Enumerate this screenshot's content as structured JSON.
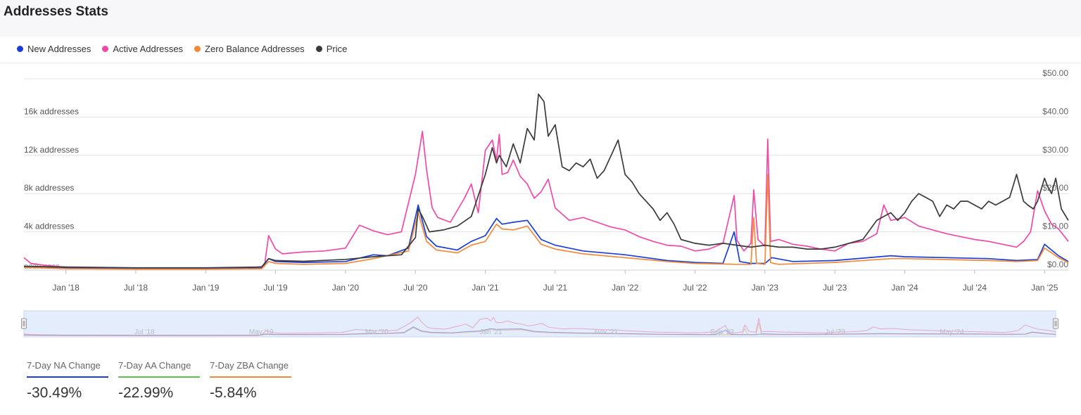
{
  "title": "Addresses Stats",
  "legend": [
    {
      "name": "New Addresses",
      "color": "#1a3fd6"
    },
    {
      "name": "Active Addresses",
      "color": "#ee4aa8"
    },
    {
      "name": "Zero Balance Addresses",
      "color": "#f28a3b"
    },
    {
      "name": "Price",
      "color": "#3a3a3a"
    }
  ],
  "stats": [
    {
      "label": "7-Day NA Change",
      "value": "-30.49%",
      "color": "#1a3fd6"
    },
    {
      "label": "7-Day AA Change",
      "value": "-22.99%",
      "color": "#5cc04e"
    },
    {
      "label": "7-Day ZBA Change",
      "value": "-5.84%",
      "color": "#f28a3b"
    }
  ],
  "chart_data": {
    "type": "line",
    "title": "",
    "left_axis": {
      "ticks": [
        "4k addresses",
        "8k addresses",
        "12k addresses",
        "16k addresses"
      ],
      "tick_values": [
        4000,
        8000,
        12000,
        16000
      ],
      "bottom_label": "addresses",
      "ylim": [
        0,
        20000
      ]
    },
    "right_axis": {
      "ticks": [
        "$0.00",
        "$10.00",
        "$20.00",
        "$30.00",
        "$40.00",
        "$50.00"
      ],
      "tick_values": [
        0,
        10,
        20,
        30,
        40,
        50
      ],
      "ylim": [
        0,
        50
      ]
    },
    "x_ticks": [
      "Jan '18",
      "Jul '18",
      "Jan '19",
      "Jul '19",
      "Jan '20",
      "Jul '20",
      "Jan '21",
      "Jul '21",
      "Jan '22",
      "Jul '22",
      "Jan '23",
      "Jul '23",
      "Jan '24",
      "Jul '24",
      "Jan '25"
    ],
    "x_tick_values": [
      2018.0,
      2018.5,
      2019.0,
      2019.5,
      2020.0,
      2020.5,
      2021.0,
      2021.5,
      2022.0,
      2022.5,
      2023.0,
      2023.5,
      2024.0,
      2024.5,
      2025.0
    ],
    "xlim": [
      2017.7,
      2025.17
    ],
    "navigator_labels": [
      "Jul '18",
      "May '19",
      "Mar '20",
      "Jan '21",
      "Nov '21",
      "Sep '22",
      "Jul '23",
      "May '24"
    ],
    "navigator_label_values": [
      2018.5,
      2019.33,
      2020.17,
      2021.0,
      2021.83,
      2022.67,
      2023.5,
      2024.33
    ],
    "series": [
      {
        "name": "Active Addresses",
        "axis": "left",
        "color": "#ee4aa8",
        "x": [
          2017.7,
          2017.75,
          2017.85,
          2018.0,
          2018.2,
          2018.5,
          2018.8,
          2019.0,
          2019.3,
          2019.42,
          2019.45,
          2019.5,
          2019.55,
          2019.7,
          2019.85,
          2020.0,
          2020.1,
          2020.2,
          2020.3,
          2020.4,
          2020.45,
          2020.5,
          2020.55,
          2020.58,
          2020.62,
          2020.66,
          2020.75,
          2020.85,
          2020.9,
          2020.95,
          2021.0,
          2021.05,
          2021.08,
          2021.1,
          2021.12,
          2021.16,
          2021.2,
          2021.25,
          2021.3,
          2021.35,
          2021.4,
          2021.45,
          2021.5,
          2021.6,
          2021.7,
          2021.8,
          2021.9,
          2022.0,
          2022.1,
          2022.2,
          2022.3,
          2022.4,
          2022.5,
          2022.6,
          2022.7,
          2022.78,
          2022.8,
          2022.85,
          2022.9,
          2022.92,
          2022.95,
          2023.0,
          2023.02,
          2023.04,
          2023.1,
          2023.2,
          2023.3,
          2023.4,
          2023.5,
          2023.6,
          2023.7,
          2023.8,
          2023.85,
          2023.9,
          2024.0,
          2024.1,
          2024.2,
          2024.3,
          2024.4,
          2024.5,
          2024.6,
          2024.7,
          2024.8,
          2024.85,
          2024.9,
          2024.95,
          2025.0,
          2025.05,
          2025.1,
          2025.17
        ],
        "y": [
          1300,
          700,
          500,
          300,
          250,
          200,
          150,
          150,
          200,
          400,
          3600,
          2200,
          1700,
          1900,
          2000,
          2300,
          4700,
          4100,
          3700,
          4000,
          7000,
          10000,
          14500,
          10500,
          6500,
          5500,
          5000,
          7500,
          9000,
          6000,
          12500,
          13600,
          11500,
          14200,
          10000,
          10200,
          11500,
          9800,
          9000,
          7500,
          8200,
          9500,
          6500,
          5200,
          5500,
          5000,
          4500,
          4200,
          3500,
          3000,
          2600,
          2500,
          2000,
          2200,
          2800,
          7800,
          3100,
          2000,
          2800,
          8400,
          3200,
          2500,
          13700,
          3000,
          3200,
          2700,
          2500,
          2200,
          2000,
          2800,
          3000,
          3800,
          6800,
          5200,
          5500,
          4600,
          4200,
          3800,
          3500,
          3200,
          3000,
          2700,
          2400,
          3000,
          4000,
          8300,
          6200,
          4800,
          4300,
          3000
        ]
      },
      {
        "name": "New Addresses",
        "axis": "left",
        "color": "#1a3fd6",
        "x": [
          2017.7,
          2017.8,
          2018.0,
          2018.5,
          2019.0,
          2019.4,
          2019.45,
          2019.5,
          2019.7,
          2020.0,
          2020.2,
          2020.3,
          2020.45,
          2020.52,
          2020.58,
          2020.65,
          2020.8,
          2020.9,
          2021.0,
          2021.08,
          2021.12,
          2021.2,
          2021.3,
          2021.4,
          2021.5,
          2021.7,
          2022.0,
          2022.3,
          2022.5,
          2022.7,
          2022.78,
          2022.82,
          2022.9,
          2023.0,
          2023.05,
          2023.2,
          2023.5,
          2023.9,
          2024.0,
          2024.3,
          2024.6,
          2024.8,
          2024.95,
          2025.0,
          2025.1,
          2025.17
        ],
        "y": [
          400,
          300,
          200,
          150,
          150,
          200,
          1200,
          900,
          800,
          900,
          1600,
          1500,
          2300,
          6800,
          3500,
          2500,
          2100,
          3000,
          3600,
          5400,
          4800,
          5000,
          5200,
          3200,
          2600,
          2000,
          1600,
          1000,
          800,
          700,
          4000,
          900,
          700,
          700,
          1300,
          900,
          1000,
          1500,
          1400,
          1300,
          1200,
          1000,
          1100,
          2700,
          1500,
          900
        ]
      },
      {
        "name": "Zero Balance Addresses",
        "axis": "left",
        "color": "#f28a3b",
        "x": [
          2017.7,
          2018.0,
          2018.5,
          2019.0,
          2019.4,
          2019.45,
          2019.5,
          2019.7,
          2020.0,
          2020.2,
          2020.45,
          2020.52,
          2020.58,
          2020.65,
          2020.8,
          2020.9,
          2021.0,
          2021.08,
          2021.12,
          2021.2,
          2021.3,
          2021.4,
          2021.5,
          2021.7,
          2022.0,
          2022.3,
          2022.5,
          2022.8,
          2022.9,
          2022.92,
          2022.94,
          2023.0,
          2023.02,
          2023.04,
          2023.06,
          2023.1,
          2023.5,
          2023.9,
          2024.0,
          2024.3,
          2024.6,
          2024.8,
          2024.95,
          2025.0,
          2025.1,
          2025.17
        ],
        "y": [
          300,
          150,
          100,
          100,
          150,
          900,
          700,
          600,
          700,
          1200,
          2000,
          6000,
          3000,
          2100,
          1800,
          2600,
          3000,
          4800,
          4300,
          4200,
          4600,
          2700,
          2200,
          1700,
          1300,
          900,
          700,
          600,
          600,
          5500,
          700,
          600,
          10000,
          800,
          700,
          600,
          800,
          1200,
          1200,
          1100,
          1000,
          900,
          1000,
          2300,
          1300,
          800
        ]
      },
      {
        "name": "Price",
        "axis": "right",
        "color": "#3a3a3a",
        "x": [
          2017.7,
          2018.0,
          2018.5,
          2019.0,
          2019.4,
          2019.45,
          2019.5,
          2019.7,
          2020.0,
          2020.2,
          2020.4,
          2020.5,
          2020.52,
          2020.55,
          2020.6,
          2020.7,
          2020.8,
          2020.9,
          2021.0,
          2021.05,
          2021.08,
          2021.1,
          2021.15,
          2021.2,
          2021.25,
          2021.3,
          2021.35,
          2021.38,
          2021.42,
          2021.45,
          2021.5,
          2021.55,
          2021.6,
          2021.65,
          2021.7,
          2021.75,
          2021.8,
          2021.85,
          2021.9,
          2021.95,
          2022.0,
          2022.05,
          2022.1,
          2022.15,
          2022.2,
          2022.25,
          2022.3,
          2022.35,
          2022.4,
          2022.5,
          2022.6,
          2022.7,
          2022.8,
          2022.9,
          2023.0,
          2023.1,
          2023.2,
          2023.3,
          2023.4,
          2023.5,
          2023.6,
          2023.7,
          2023.8,
          2023.85,
          2023.9,
          2023.95,
          2024.0,
          2024.05,
          2024.1,
          2024.15,
          2024.2,
          2024.25,
          2024.3,
          2024.35,
          2024.4,
          2024.45,
          2024.5,
          2024.55,
          2024.6,
          2024.65,
          2024.7,
          2024.75,
          2024.8,
          2024.85,
          2024.88,
          2024.92,
          2024.95,
          2025.0,
          2025.02,
          2025.05,
          2025.08,
          2025.12,
          2025.17
        ],
        "y": [
          1.0,
          0.8,
          0.6,
          0.6,
          0.8,
          3.0,
          2.5,
          2.3,
          2.8,
          3.5,
          4.0,
          8.5,
          16.0,
          14.0,
          10.0,
          10.5,
          11.5,
          14.0,
          25.0,
          32.0,
          28.0,
          30.0,
          27.0,
          33.0,
          28.0,
          37.0,
          34.0,
          46.0,
          44.0,
          35.0,
          38.0,
          27.0,
          26.0,
          28.0,
          27.0,
          29.0,
          24.0,
          26.0,
          30.0,
          34.0,
          25.0,
          23.0,
          20.0,
          18.0,
          16.0,
          13.0,
          15.0,
          12.0,
          8.0,
          7.0,
          6.5,
          7.0,
          6.5,
          6.0,
          6.5,
          6.0,
          6.0,
          5.5,
          5.5,
          6.0,
          7.0,
          8.0,
          13.0,
          14.0,
          15.0,
          13.0,
          15.0,
          18.0,
          20.0,
          19.0,
          18.0,
          14.0,
          17.0,
          16.0,
          18.0,
          18.0,
          17.0,
          16.0,
          18.0,
          17.0,
          18.0,
          19.0,
          25.0,
          18.0,
          17.0,
          16.0,
          18.0,
          24.0,
          22.0,
          20.0,
          24.0,
          16.0,
          13.0
        ]
      }
    ]
  }
}
